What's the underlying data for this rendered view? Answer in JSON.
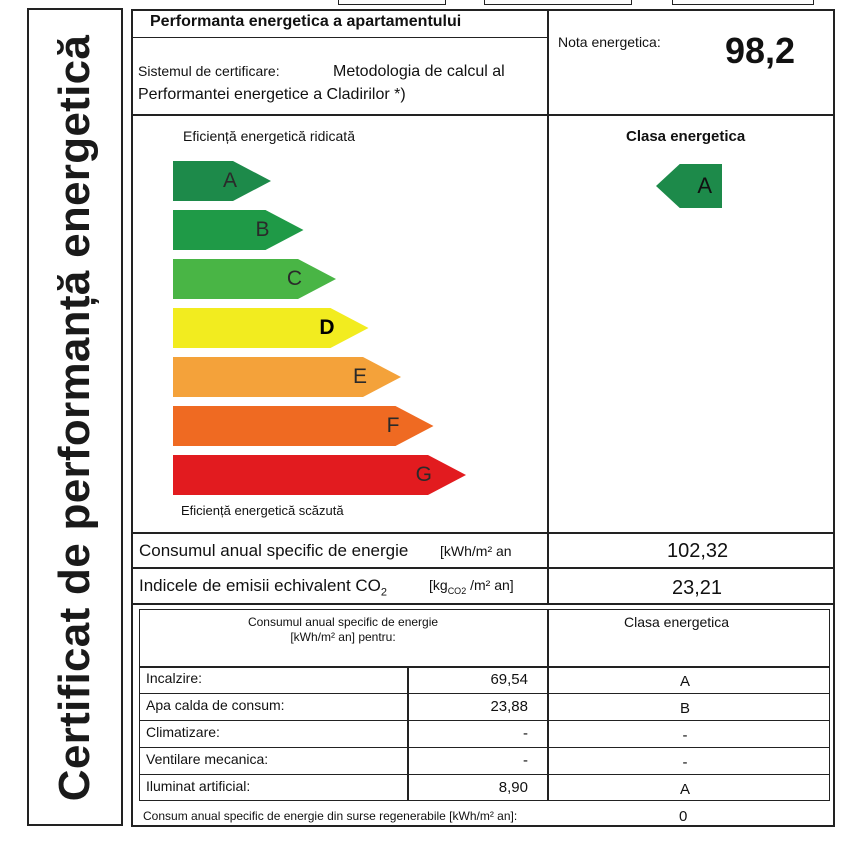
{
  "side_title": "Certificat de performanță energetică",
  "header": {
    "title": "Performanta energetica a apartamentului",
    "system_label": "Sistemul de certificare:",
    "system_value_line1": "Metodologia de calcul al",
    "system_value_line2": "Performantei energetice a Cladirilor  *)",
    "grade_label": "Nota energetica:",
    "grade_value": "98,2"
  },
  "scale": {
    "top_label": "Eficiență energetică ridicată",
    "bottom_label": "Eficiență energetică scăzută",
    "classes": [
      {
        "letter": "A",
        "color": "#1d8a4a"
      },
      {
        "letter": "B",
        "color": "#1f9a47"
      },
      {
        "letter": "C",
        "color": "#49b545"
      },
      {
        "letter": "D",
        "color": "#f2ec1f"
      },
      {
        "letter": "E",
        "color": "#f4a23a"
      },
      {
        "letter": "F",
        "color": "#ef6a22"
      },
      {
        "letter": "G",
        "color": "#e21b1f"
      }
    ]
  },
  "class_panel": {
    "title": "Clasa energetica",
    "value": "A",
    "color": "#1d8a4a"
  },
  "consumption": {
    "label": "Consumul anual specific de energie",
    "unit": "[kWh/m² an",
    "value": "102,32"
  },
  "emissions": {
    "label": "Indicele de emisii echivalent CO",
    "label_sub": "2",
    "unit_a": "[kg",
    "unit_sub": "CO2",
    "unit_b": "/m² an]",
    "value": "23,21"
  },
  "breakdown": {
    "header_line1": "Consumul anual specific de energie",
    "header_line2": "[kWh/m² an] pentru:",
    "class_header": "Clasa energetica",
    "rows": [
      {
        "label": "Incalzire:",
        "value": "69,54",
        "class": "A"
      },
      {
        "label": "Apa calda de consum:",
        "value": "23,88",
        "class": "B"
      },
      {
        "label": "Climatizare:",
        "value": "-",
        "class": "-"
      },
      {
        "label": "Ventilare mecanica:",
        "value": "-",
        "class": "-"
      },
      {
        "label": "Iluminat artificial:",
        "value": "8,90",
        "class": "A"
      }
    ],
    "renewable_label": "Consum anual specific de energie din surse regenerabile [kWh/m² an]:",
    "renewable_value": "0"
  }
}
